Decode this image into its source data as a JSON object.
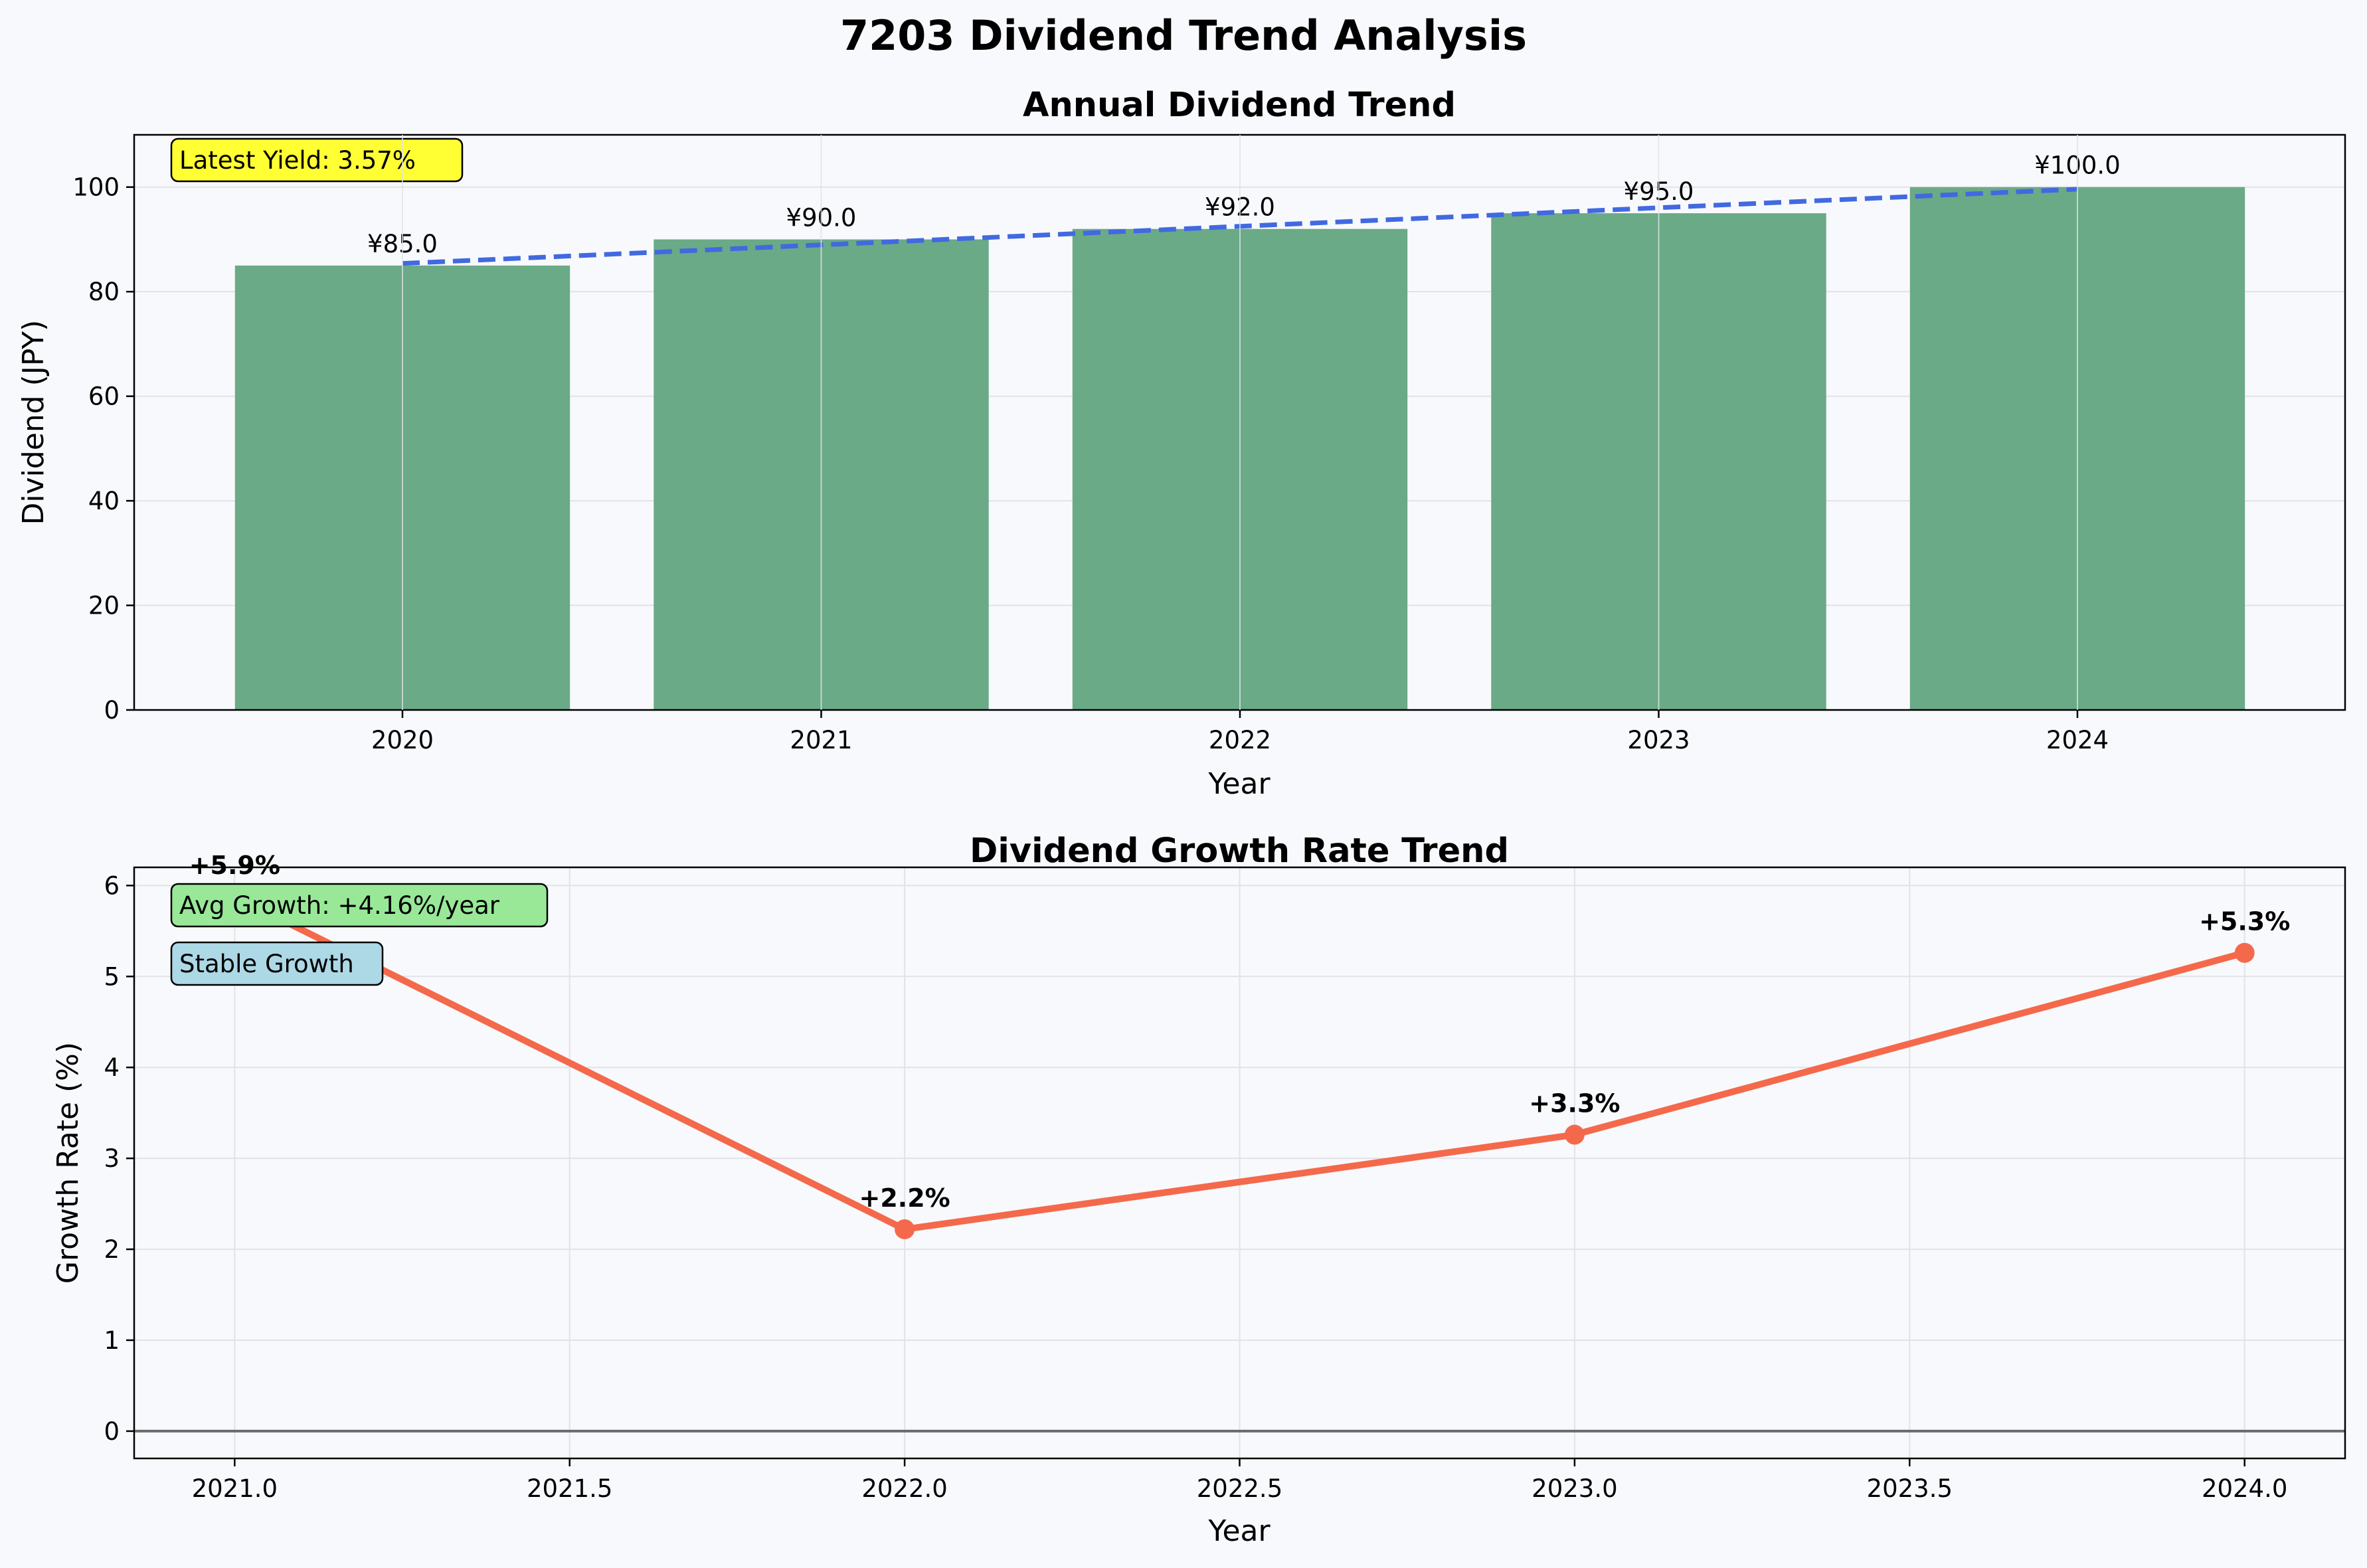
{
  "figure": {
    "title": "7203 Dividend Trend Analysis",
    "background": "#f8f9fc"
  },
  "chart_data": [
    {
      "type": "bar",
      "title": "Annual Dividend Trend",
      "xlabel": "Year",
      "ylabel": "Dividend (JPY)",
      "categories": [
        "2020",
        "2021",
        "2022",
        "2023",
        "2024"
      ],
      "values": [
        85.0,
        90.0,
        92.0,
        95.0,
        100.0
      ],
      "value_labels": [
        "¥85.0",
        "¥90.0",
        "¥92.0",
        "¥95.0",
        "¥100.0"
      ],
      "yticks": [
        0,
        20,
        40,
        60,
        80,
        100
      ],
      "ylim": [
        0,
        110
      ],
      "grid": true,
      "bar_color": "#6aaa86",
      "trend_line": {
        "style": "dashed",
        "color": "#4169e1",
        "start": 85.4,
        "end": 99.6
      },
      "annotation": {
        "text": "Latest Yield: 3.57%",
        "background": "#ffff33",
        "position": "top-left"
      }
    },
    {
      "type": "line",
      "title": "Dividend Growth Rate Trend",
      "xlabel": "Year",
      "ylabel": "Growth Rate (%)",
      "x": [
        2021,
        2022,
        2023,
        2024
      ],
      "y": [
        5.88,
        2.22,
        3.26,
        5.26
      ],
      "point_labels": [
        "+5.9%",
        "+2.2%",
        "+3.3%",
        "+5.3%"
      ],
      "xticks": [
        "2021.0",
        "2021.5",
        "2022.0",
        "2022.5",
        "2023.0",
        "2023.5",
        "2024.0"
      ],
      "xtick_values": [
        2021.0,
        2021.5,
        2022.0,
        2022.5,
        2023.0,
        2023.5,
        2024.0
      ],
      "yticks": [
        0,
        1,
        2,
        3,
        4,
        5,
        6
      ],
      "xlim": [
        2020.85,
        2024.15
      ],
      "ylim": [
        -0.3,
        6.2
      ],
      "grid": true,
      "line_color": "#f4694b",
      "zero_line_color": "#6b6b6b",
      "annotations": [
        {
          "text": "Avg Growth: +4.16%/year",
          "background": "#98e898"
        },
        {
          "text": "Stable Growth",
          "background": "#add8e6"
        }
      ]
    }
  ]
}
